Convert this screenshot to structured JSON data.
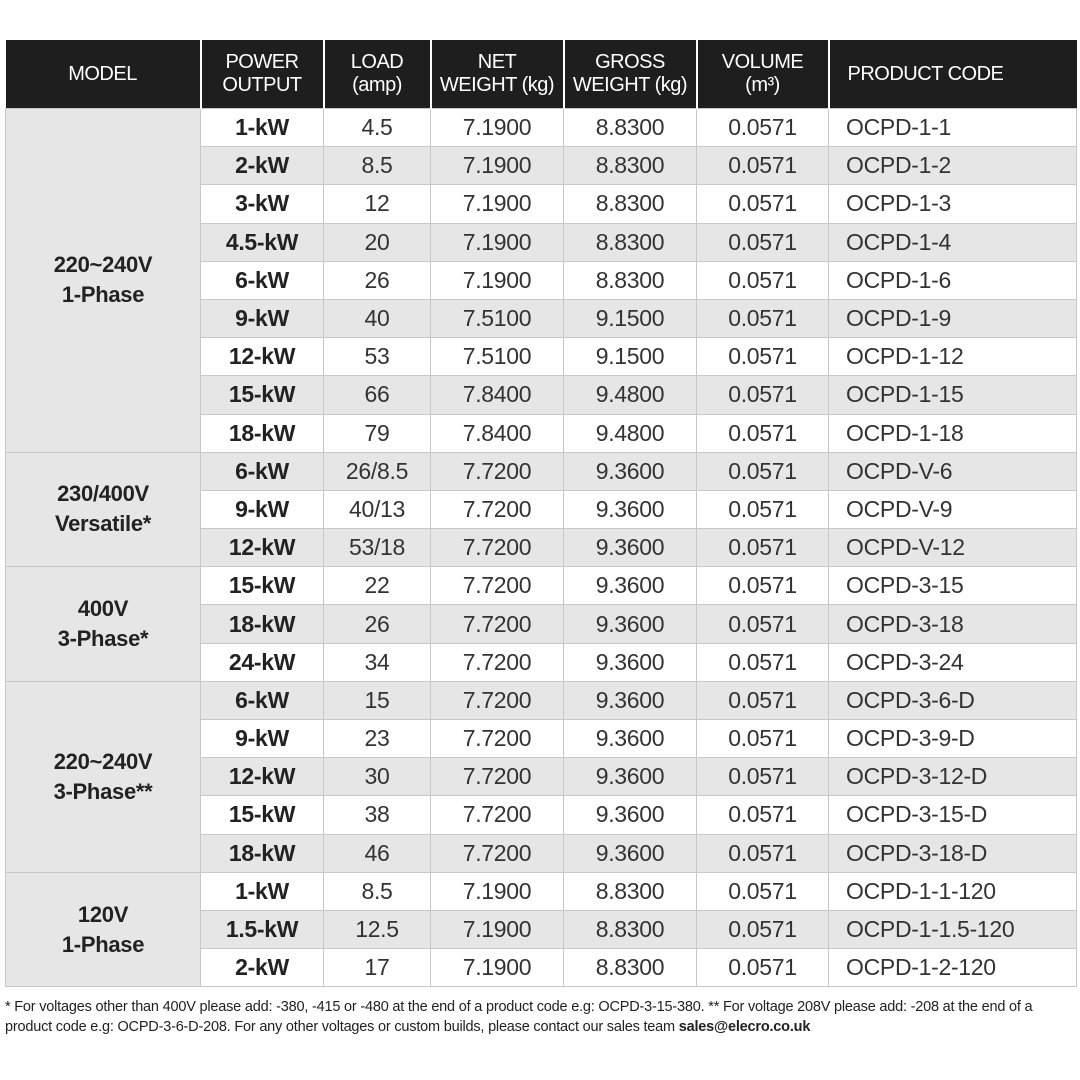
{
  "headers": [
    "MODEL",
    "POWER\nOUTPUT",
    "LOAD\n(amp)",
    "NET\nWEIGHT (kg)",
    "GROSS\nWEIGHT (kg)",
    "VOLUME\n(m³)",
    "PRODUCT CODE"
  ],
  "groups": [
    {
      "model": [
        "220~240V",
        "1-Phase"
      ],
      "rows": [
        [
          "1-kW",
          "4.5",
          "7.1900",
          "8.8300",
          "0.0571",
          "OCPD-1-1"
        ],
        [
          "2-kW",
          "8.5",
          "7.1900",
          "8.8300",
          "0.0571",
          "OCPD-1-2"
        ],
        [
          "3-kW",
          "12",
          "7.1900",
          "8.8300",
          "0.0571",
          "OCPD-1-3"
        ],
        [
          "4.5-kW",
          "20",
          "7.1900",
          "8.8300",
          "0.0571",
          "OCPD-1-4"
        ],
        [
          "6-kW",
          "26",
          "7.1900",
          "8.8300",
          "0.0571",
          "OCPD-1-6"
        ],
        [
          "9-kW",
          "40",
          "7.5100",
          "9.1500",
          "0.0571",
          "OCPD-1-9"
        ],
        [
          "12-kW",
          "53",
          "7.5100",
          "9.1500",
          "0.0571",
          "OCPD-1-12"
        ],
        [
          "15-kW",
          "66",
          "7.8400",
          "9.4800",
          "0.0571",
          "OCPD-1-15"
        ],
        [
          "18-kW",
          "79",
          "7.8400",
          "9.4800",
          "0.0571",
          "OCPD-1-18"
        ]
      ]
    },
    {
      "model": [
        "230/400V",
        "Versatile*"
      ],
      "rows": [
        [
          "6-kW",
          "26/8.5",
          "7.7200",
          "9.3600",
          "0.0571",
          "OCPD-V-6"
        ],
        [
          "9-kW",
          "40/13",
          "7.7200",
          "9.3600",
          "0.0571",
          "OCPD-V-9"
        ],
        [
          "12-kW",
          "53/18",
          "7.7200",
          "9.3600",
          "0.0571",
          "OCPD-V-12"
        ]
      ]
    },
    {
      "model": [
        "400V",
        "3-Phase*"
      ],
      "rows": [
        [
          "15-kW",
          "22",
          "7.7200",
          "9.3600",
          "0.0571",
          "OCPD-3-15"
        ],
        [
          "18-kW",
          "26",
          "7.7200",
          "9.3600",
          "0.0571",
          "OCPD-3-18"
        ],
        [
          "24-kW",
          "34",
          "7.7200",
          "9.3600",
          "0.0571",
          "OCPD-3-24"
        ]
      ]
    },
    {
      "model": [
        "220~240V",
        "3-Phase**"
      ],
      "rows": [
        [
          "6-kW",
          "15",
          "7.7200",
          "9.3600",
          "0.0571",
          "OCPD-3-6-D"
        ],
        [
          "9-kW",
          "23",
          "7.7200",
          "9.3600",
          "0.0571",
          "OCPD-3-9-D"
        ],
        [
          "12-kW",
          "30",
          "7.7200",
          "9.3600",
          "0.0571",
          "OCPD-3-12-D"
        ],
        [
          "15-kW",
          "38",
          "7.7200",
          "9.3600",
          "0.0571",
          "OCPD-3-15-D"
        ],
        [
          "18-kW",
          "46",
          "7.7200",
          "9.3600",
          "0.0571",
          "OCPD-3-18-D"
        ]
      ]
    },
    {
      "model": [
        "120V",
        "1-Phase"
      ],
      "rows": [
        [
          "1-kW",
          "8.5",
          "7.1900",
          "8.8300",
          "0.0571",
          "OCPD-1-1-120"
        ],
        [
          "1.5-kW",
          "12.5",
          "7.1900",
          "8.8300",
          "0.0571",
          "OCPD-1-1.5-120"
        ],
        [
          "2-kW",
          "17",
          "7.1900",
          "8.8300",
          "0.0571",
          "OCPD-1-2-120"
        ]
      ]
    }
  ],
  "footnote": {
    "text": "* For voltages other than 400V please add: -380, -415 or -480 at the end of a product code e.g: OCPD-3-15-380. ** For voltage 208V please add: -208 at the end of a product code e.g:  OCPD-3-6-D-208. For any other voltages or custom builds, please contact our sales team ",
    "email": "sales@elecro.co.uk"
  },
  "colors": {
    "header_bg": "#1e1e1e",
    "stripe": "#e6e6e6",
    "border": "#c8c8c8"
  }
}
